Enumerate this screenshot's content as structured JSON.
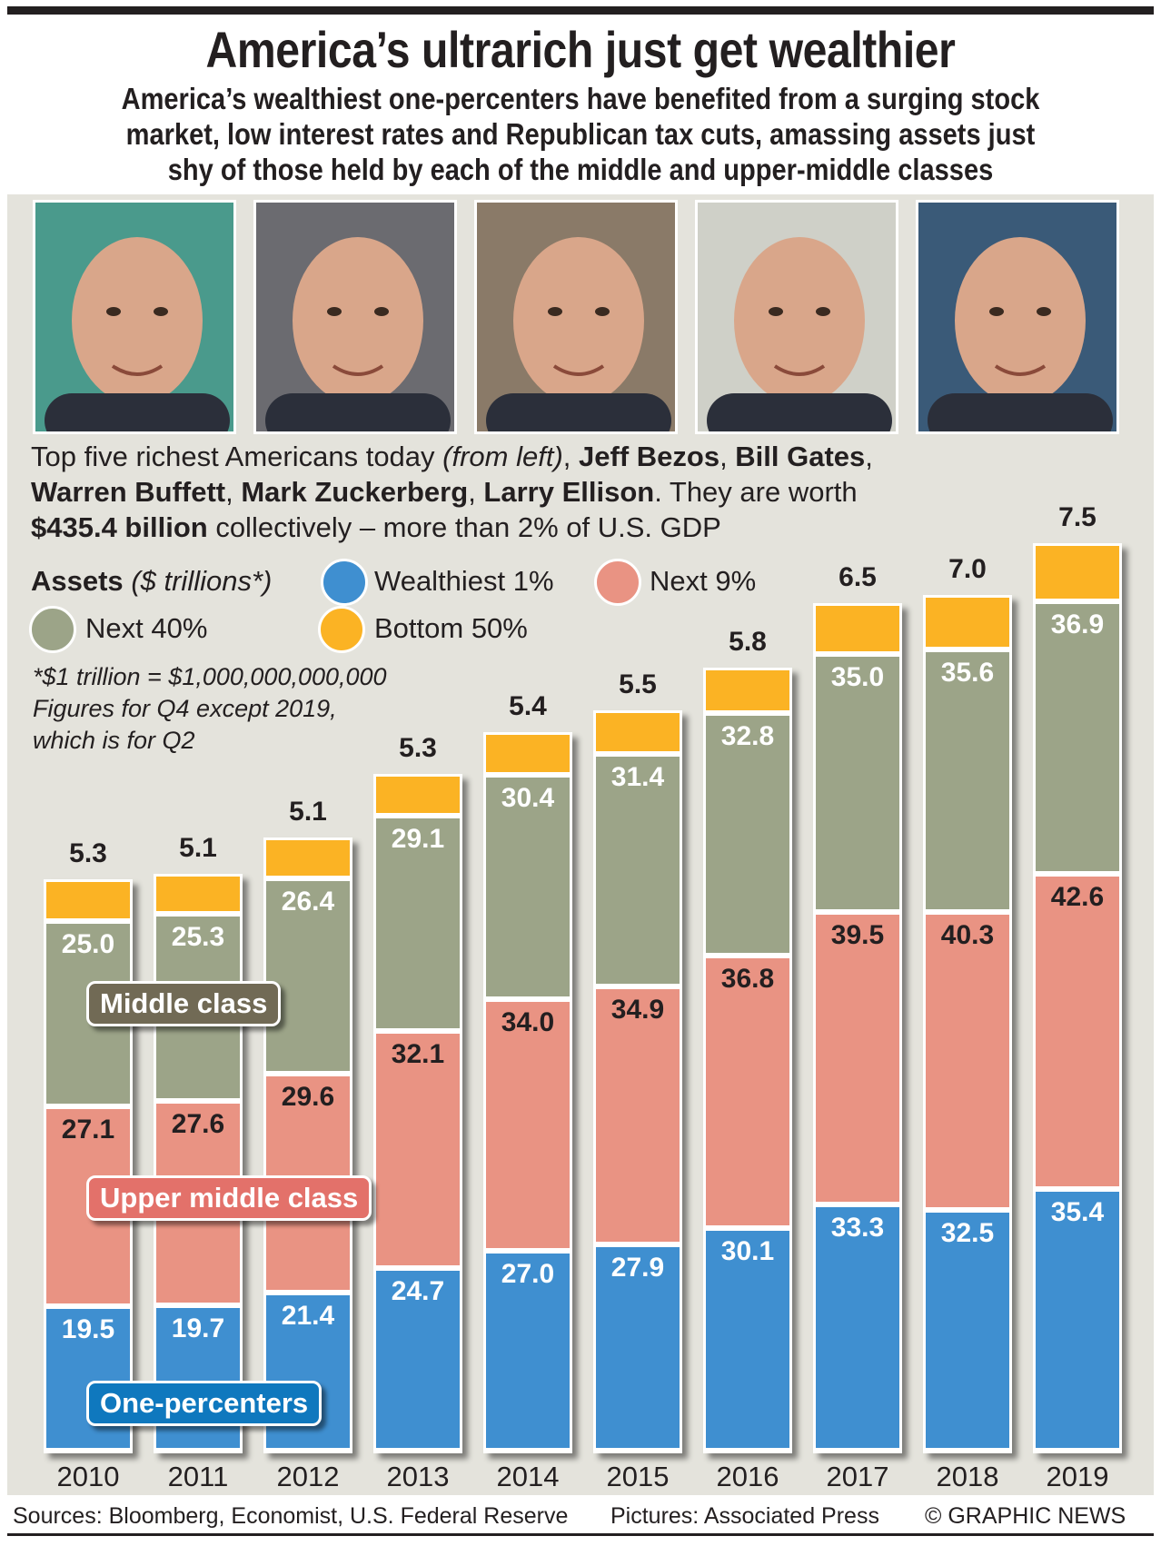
{
  "title": "America’s ultrarich just get wealthier",
  "subtitle": [
    "America’s wealthiest one-percenters have benefited from a surging stock",
    "market, low interest rates and Republican tax cuts, amassing assets just",
    "shy of those held by each of the middle and upper-middle classes"
  ],
  "photos": [
    "Jeff Bezos",
    "Bill Gates",
    "Warren Buffett",
    "Mark Zuckerberg",
    "Larry Ellison"
  ],
  "caption": {
    "l1a": "Top five richest Americans today ",
    "l1b": "(from left)",
    "l1c": ", ",
    "n1": "Jeff Bezos",
    "sep1": ", ",
    "n2": "Bill Gates",
    "l1d": ",",
    "n3": "Warren Buffett",
    "sep2": ", ",
    "n4": "Mark Zuckerberg",
    "sep3": ", ",
    "n5": "Larry Ellison",
    "l2": ". They are worth",
    "amount": "$435.4 billion",
    "l3": " collectively – more than 2% of U.S. GDP"
  },
  "legend": {
    "title": "Assets",
    "unit": "($ trillions*)"
  },
  "notes": [
    "*$1 trillion = $1,000,000,000,000",
    "Figures for Q4 except 2019,",
    "which is for Q2"
  ],
  "class_labels": {
    "middle": "Middle class",
    "upper": "Upper middle class",
    "one": "One-percenters"
  },
  "colors": {
    "Wealthiest 1%": "#3f8fd0",
    "Next 9%": "#e99383",
    "Next 40%": "#9ca488",
    "Bottom 50%": "#fbb324"
  },
  "chart_data": {
    "type": "bar",
    "stacked": true,
    "title": "Assets ($ trillions*)",
    "categories": [
      "2010",
      "2011",
      "2012",
      "2013",
      "2014",
      "2015",
      "2016",
      "2017",
      "2018",
      "2019"
    ],
    "series": [
      {
        "name": "Wealthiest 1%",
        "values": [
          19.5,
          19.7,
          21.4,
          24.7,
          27.0,
          27.9,
          30.1,
          33.3,
          32.5,
          35.4
        ]
      },
      {
        "name": "Next 9%",
        "values": [
          27.1,
          27.6,
          29.6,
          32.1,
          34.0,
          34.9,
          36.8,
          39.5,
          40.3,
          42.6
        ]
      },
      {
        "name": "Next 40%",
        "values": [
          25.0,
          25.3,
          26.4,
          29.1,
          30.4,
          31.4,
          32.8,
          35.0,
          35.6,
          36.9
        ]
      },
      {
        "name": "Bottom 50%",
        "values": [
          5.3,
          5.1,
          5.1,
          5.3,
          5.4,
          5.5,
          5.8,
          6.5,
          7.0,
          7.5
        ]
      }
    ],
    "legend": "top-left",
    "grid": false
  },
  "footer": {
    "sources": "Sources: Bloomberg, Economist, U.S. Federal Reserve",
    "pictures": "Pictures: Associated Press",
    "credit": "© GRAPHIC NEWS"
  }
}
